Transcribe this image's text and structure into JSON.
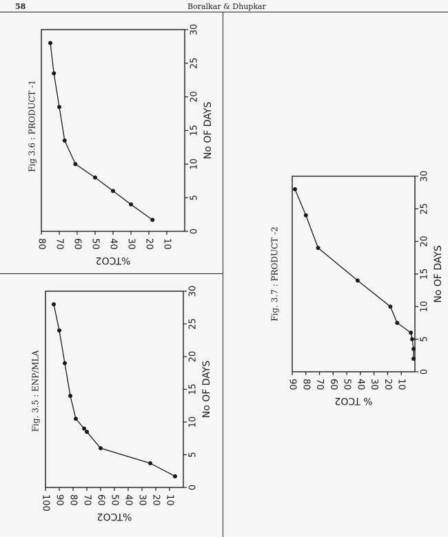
{
  "header": {
    "page_number": "58",
    "running_head": "Boralkar & Dhupkar"
  },
  "chart_data": [
    {
      "type": "line",
      "caption": "Fig. 3.5 : ENP/MLA",
      "xlabel": "No OF DAYS",
      "ylabel": "%TCO2",
      "xlim": [
        0,
        30
      ],
      "ylim": [
        0,
        100
      ],
      "x_ticks": [
        "0",
        "5",
        "10",
        "15",
        "20",
        "25",
        "30"
      ],
      "y_ticks": [
        "10",
        "20",
        "30",
        "40",
        "50",
        "60",
        "70",
        "80",
        "90",
        "100"
      ],
      "series": [
        {
          "x": [
            28,
            24,
            19,
            14,
            10.5,
            9,
            8.5,
            6,
            3.7,
            1.7
          ],
          "y": [
            94,
            90,
            86,
            82,
            78,
            72,
            70,
            60,
            24,
            6
          ]
        }
      ]
    },
    {
      "type": "line",
      "caption": "Fig 3.6 : PRODUCT -1",
      "xlabel": "No OF DAYS",
      "ylabel": "%TCO2",
      "xlim": [
        0,
        30
      ],
      "ylim": [
        0,
        80
      ],
      "x_ticks": [
        "0",
        "5",
        "10",
        "15",
        "20",
        "25",
        "30"
      ],
      "y_ticks": [
        "10",
        "20",
        "30",
        "40",
        "50",
        "60",
        "70",
        "80"
      ],
      "series": [
        {
          "x": [
            28,
            23.5,
            18.5,
            13.5,
            10,
            8,
            6,
            4,
            1.7
          ],
          "y": [
            75,
            73,
            70,
            67,
            61,
            50,
            40,
            30,
            18
          ]
        }
      ]
    },
    {
      "type": "line",
      "caption": "Fig. 3.7 : PRODUCT -2",
      "xlabel": "No OF DAYS",
      "ylabel": "% TCO2",
      "xlim": [
        0,
        30
      ],
      "ylim": [
        0,
        90
      ],
      "x_ticks": [
        "0",
        "5",
        "10",
        "15",
        "20",
        "25",
        "30"
      ],
      "y_ticks": [
        "10",
        "20",
        "30",
        "40",
        "50",
        "60",
        "70",
        "80",
        "90"
      ],
      "series": [
        {
          "x": [
            28,
            24,
            19,
            14,
            10,
            7.5,
            6,
            5,
            3.5,
            2
          ],
          "y": [
            88,
            80,
            71,
            42,
            18,
            13,
            3,
            2,
            1,
            1
          ]
        }
      ]
    }
  ]
}
